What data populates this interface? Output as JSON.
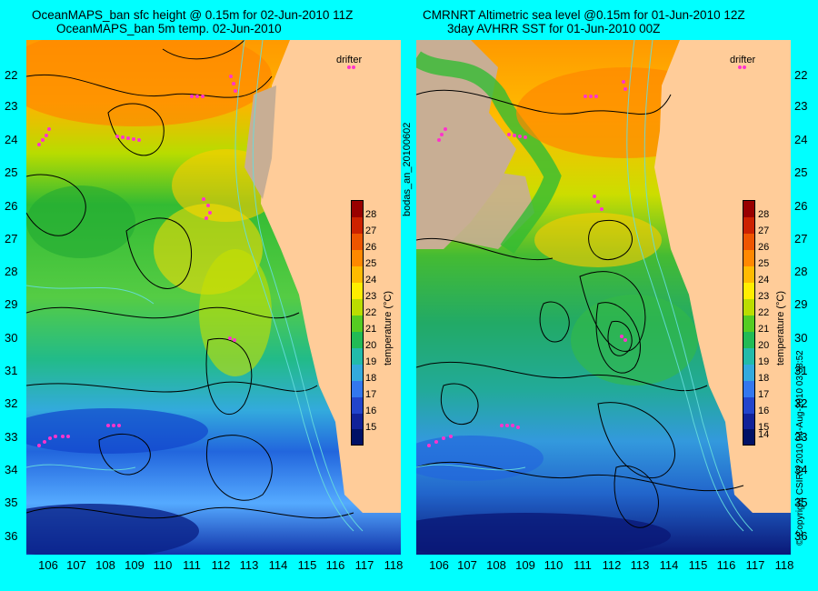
{
  "left_panel": {
    "title_line1": "OceanMAPS_ban sfc height @ 0.15m for 02-Jun-2010 11Z",
    "title_line2": "OceanMAPS_ban 5m temp. 02-Jun-2010",
    "drifter_label": "drifter"
  },
  "right_panel": {
    "title_line1": "CMRNRT Altimetric sea level  @0.15m  for 01-Jun-2010 12Z",
    "title_line2": "3day AVHRR SST for 01-Jun-2010 00Z",
    "drifter_label": "drifter"
  },
  "latitudes": [
    "22",
    "23",
    "24",
    "25",
    "26",
    "27",
    "28",
    "29",
    "30",
    "31",
    "32",
    "33",
    "34",
    "35",
    "36"
  ],
  "longitudes": [
    "106",
    "107",
    "108",
    "109",
    "110",
    "111",
    "112",
    "113",
    "114",
    "115",
    "116",
    "117",
    "118"
  ],
  "colorbar": {
    "label": "temperature (°C)",
    "ticks": [
      "28",
      "27",
      "26",
      "25",
      "24",
      "23",
      "22",
      "21",
      "20",
      "19",
      "18",
      "17",
      "16",
      "15",
      "14"
    ]
  },
  "side_text_left": "bodas_an_20100602",
  "side_text_right": "© Copyright CSIRO 2010    04-Aug-2010 03:38:52",
  "colors": {
    "background": "#00ffff",
    "land": "#ffcc99",
    "drifter": "#ff33cc",
    "no_data": "#c8ae94"
  }
}
